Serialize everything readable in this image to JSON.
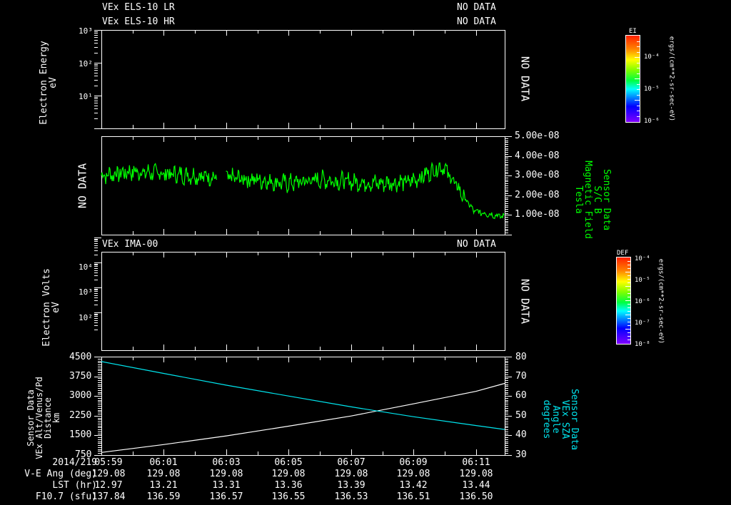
{
  "colors": {
    "background": "#000000",
    "axis": "#ffffff",
    "mag_field": "#00ff00",
    "sza": "#00e5ee",
    "altitude": "#ffffff"
  },
  "panel1": {
    "title_lr": "VEx ELS-10 LR",
    "title_hr": "VEx ELS-10 HR",
    "status_lr": "NO DATA",
    "status_hr": "NO DATA",
    "ylabel_line1": "Electron Energy",
    "ylabel_line2": "eV",
    "yticks": [
      "10³",
      "10²",
      "10¹"
    ],
    "right_status": "NO DATA",
    "colorbar": {
      "title": "EI",
      "ticks": [
        "10⁻⁴",
        "10⁻⁵",
        "10⁻⁶"
      ],
      "units": "ergs/(cm**2-sr-sec-eV)"
    }
  },
  "panel2": {
    "left_status": "NO DATA",
    "yticks": [
      "5.00e-08",
      "4.00e-08",
      "3.00e-08",
      "2.00e-08",
      "1.00e-08"
    ],
    "label_line1": "Sensor Data",
    "label_line2": "S/C B",
    "label_line3": "Magnetic Field",
    "label_line4": "Tesla"
  },
  "panel3": {
    "title": "VEx IMA-00",
    "status": "NO DATA",
    "ylabel_line1": "Electron Volts",
    "ylabel_line2": "eV",
    "yticks": [
      "10⁴",
      "10³",
      "10²"
    ],
    "right_status": "NO DATA",
    "colorbar": {
      "title": "DEF",
      "ticks": [
        "10⁻⁴",
        "10⁻⁵",
        "10⁻⁶",
        "10⁻⁷",
        "10⁻⁸"
      ],
      "units": "ergs/(cm**2-sr-sec-eV)"
    }
  },
  "panel4": {
    "left_label_line1": "Sensor Data",
    "left_label_line2": "VEx Alt/Venus/Pd",
    "left_label_line3": "Distance",
    "left_label_line4": "km",
    "left_yticks": [
      "4500",
      "3750",
      "3000",
      "2250",
      "1500",
      "750"
    ],
    "right_yticks": [
      "80",
      "70",
      "60",
      "50",
      "40",
      "30"
    ],
    "right_label_line1": "Sensor Data",
    "right_label_line2": "VEx SZA",
    "right_label_line3": "Angle",
    "right_label_line4": "degrees"
  },
  "footer": {
    "row_labels": [
      "2014/219",
      "V-E Ang (deg)",
      "LST (hr)",
      "F10.7 (sfu)"
    ],
    "columns": [
      {
        "time": "05:59",
        "ve_ang": "129.08",
        "lst": "12.97",
        "f107": "137.84"
      },
      {
        "time": "06:01",
        "ve_ang": "129.08",
        "lst": "13.21",
        "f107": "136.59"
      },
      {
        "time": "06:03",
        "ve_ang": "129.08",
        "lst": "13.31",
        "f107": "136.57"
      },
      {
        "time": "06:05",
        "ve_ang": "129.08",
        "lst": "13.36",
        "f107": "136.55"
      },
      {
        "time": "06:07",
        "ve_ang": "129.08",
        "lst": "13.39",
        "f107": "136.53"
      },
      {
        "time": "06:09",
        "ve_ang": "129.08",
        "lst": "13.42",
        "f107": "136.51"
      },
      {
        "time": "06:11",
        "ve_ang": "129.08",
        "lst": "13.44",
        "f107": "136.50"
      }
    ]
  },
  "chart_data": [
    {
      "type": "heatmap",
      "title": "VEx ELS-10 LR / VEx ELS-10 HR",
      "status": "NO DATA",
      "ylabel": "Electron Energy (eV)",
      "yscale": "log",
      "ylim": [
        1,
        1000
      ],
      "colorbar": {
        "label": "EI",
        "units": "ergs/(cm**2-sr-sec-eV)",
        "range": [
          1e-06,
          0.001
        ]
      }
    },
    {
      "type": "line",
      "title": "Sensor Data S/C B Magnetic Field",
      "ylabel": "Tesla",
      "ylim": [
        0,
        5e-08
      ],
      "x": [
        "05:59",
        "06:00",
        "06:01",
        "06:02",
        "06:03",
        "06:04",
        "06:05",
        "06:06",
        "06:07",
        "06:08",
        "06:09",
        "06:10",
        "06:11",
        "06:12"
      ],
      "series": [
        {
          "name": "Magnetic Field",
          "values": [
            3e-08,
            3.2e-08,
            3.1e-08,
            3e-08,
            2.9e-08,
            2.8e-08,
            2.6e-08,
            2.8e-08,
            2.7e-08,
            2.6e-08,
            2.7e-08,
            3.5e-08,
            1.2e-08,
            9e-09
          ]
        }
      ],
      "annotations": [
        "data gap near 06:02"
      ]
    },
    {
      "type": "heatmap",
      "title": "VEx IMA-00",
      "status": "NO DATA",
      "ylabel": "Electron Volts (eV)",
      "yscale": "log",
      "ylim": [
        10,
        30000
      ],
      "colorbar": {
        "label": "DEF",
        "units": "ergs/(cm**2-sr-sec-eV)",
        "range": [
          1e-08,
          0.0001
        ]
      }
    },
    {
      "type": "line",
      "title": "Sensor Data",
      "x": [
        "05:59",
        "06:01",
        "06:03",
        "06:05",
        "06:07",
        "06:09",
        "06:11",
        "06:12"
      ],
      "series": [
        {
          "name": "VEx Alt/Venus/Pd Distance (km)",
          "axis": "left",
          "values": [
            850,
            1150,
            1480,
            1850,
            2240,
            2700,
            3180,
            3480
          ]
        },
        {
          "name": "VEx SZA Angle (degrees)",
          "axis": "right",
          "values": [
            77.5,
            71.5,
            65.5,
            60.0,
            54.5,
            49.5,
            45.0,
            43.0
          ]
        }
      ],
      "left_ylim": [
        750,
        4500
      ],
      "right_ylim": [
        30,
        80
      ]
    }
  ]
}
